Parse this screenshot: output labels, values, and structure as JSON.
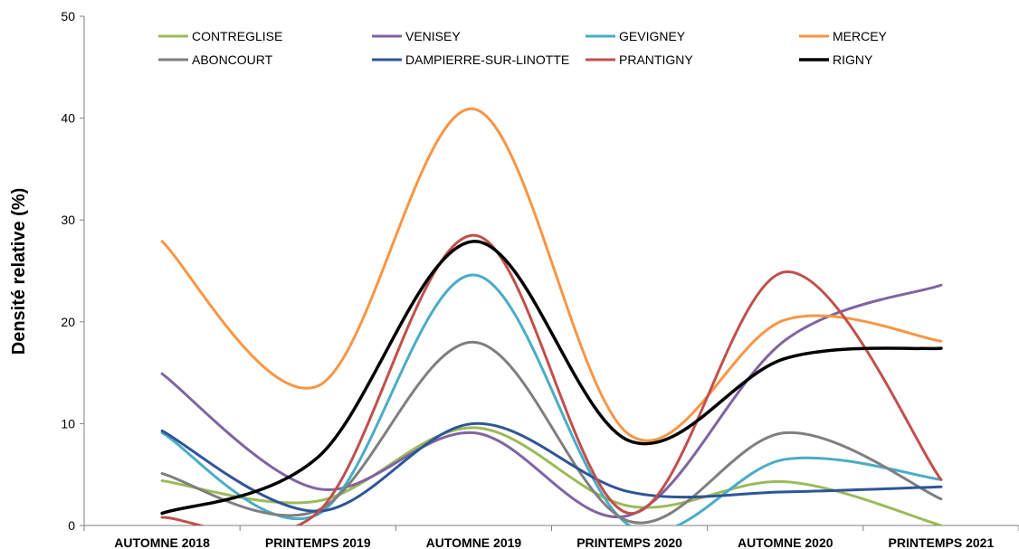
{
  "chart_data": {
    "type": "line",
    "smooth": true,
    "title": "",
    "xlabel": "",
    "ylabel": "Densité relative (%)",
    "ylim": [
      0,
      50
    ],
    "yticks": [
      0,
      10,
      20,
      30,
      40,
      50
    ],
    "grid": false,
    "legend_position": "top",
    "categories": [
      "AUTOMNE 2018",
      "PRINTEMPS 2019",
      "AUTOMNE 2019",
      "PRINTEMPS 2020",
      "AUTOMNE 2020",
      "PRINTEMPS 2021"
    ],
    "series": [
      {
        "name": "CONTREGLISE",
        "color": "#9BBB59",
        "values": [
          4.4,
          2.4,
          9.6,
          1.9,
          4.3,
          0
        ]
      },
      {
        "name": "VENISEY",
        "color": "#8064A2",
        "values": [
          14.9,
          3.6,
          9.1,
          1.0,
          18.2,
          23.6
        ]
      },
      {
        "name": "GEVIGNEY",
        "color": "#4BACC6",
        "values": [
          9.1,
          1.1,
          24.6,
          0,
          6.5,
          4.5
        ]
      },
      {
        "name": "MERCEY",
        "color": "#F79646",
        "values": [
          27.9,
          13.7,
          40.9,
          8.9,
          20.2,
          18.1
        ]
      },
      {
        "name": "ABONCOURT",
        "color": "#7F7F7F",
        "values": [
          5.1,
          1.5,
          18.0,
          0.4,
          9.1,
          2.6
        ]
      },
      {
        "name": "DAMPIERRE-SUR-LINOTTE",
        "color": "#2F5597",
        "values": [
          9.3,
          1.4,
          10.0,
          3.3,
          3.3,
          3.8
        ]
      },
      {
        "name": "PRANTIGNY",
        "color": "#C0504D",
        "values": [
          0.8,
          1.3,
          28.5,
          1.2,
          24.9,
          4.5
        ]
      },
      {
        "name": "RIGNY",
        "color": "#000000",
        "values": [
          1.2,
          6.7,
          27.9,
          8.3,
          16.4,
          17.4
        ]
      }
    ]
  }
}
